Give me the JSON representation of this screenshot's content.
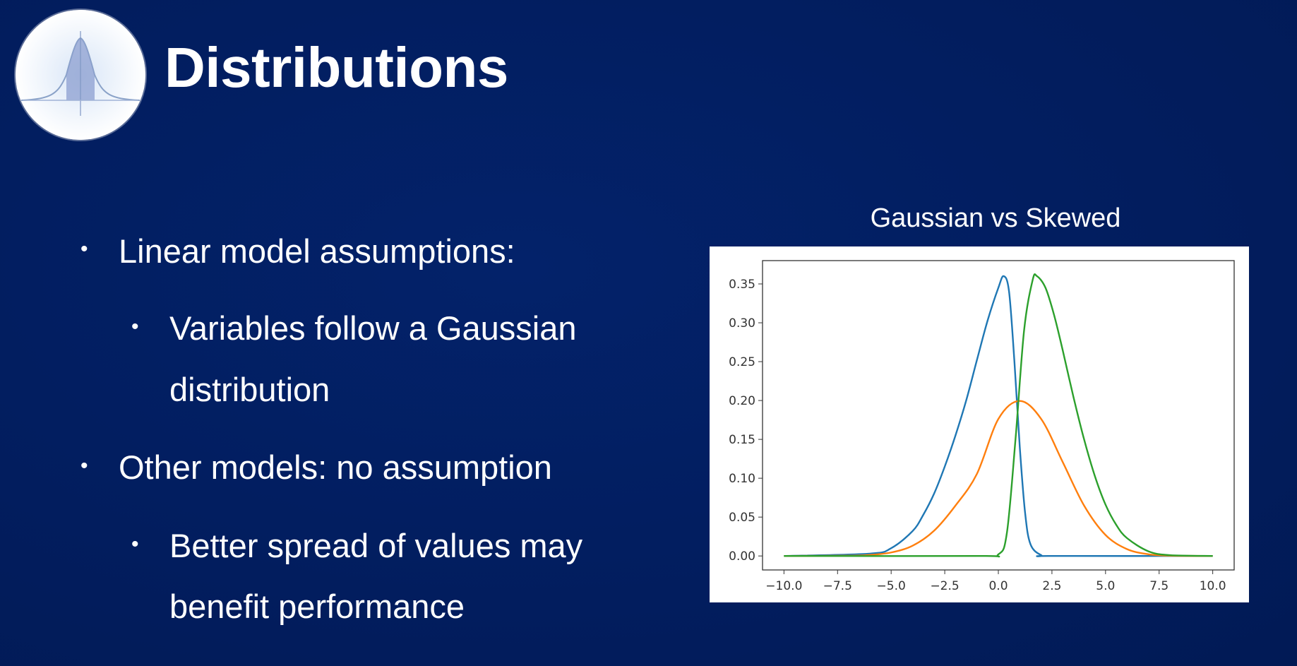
{
  "slide": {
    "title": "Distributions",
    "bullets": [
      {
        "text": "Linear model assumptions:",
        "level": 1
      },
      {
        "text": "Variables follow a Gaussian",
        "level": 2
      },
      {
        "text": "distribution",
        "level": 2,
        "continuation": true
      },
      {
        "text": "Other models: no assumption",
        "level": 1
      },
      {
        "text": "Better spread of values may",
        "level": 2
      },
      {
        "text": "benefit performance",
        "level": 2,
        "continuation": true
      }
    ],
    "bullet_symbol": "•",
    "colors": {
      "background": "#021d5e",
      "text": "#ffffff"
    }
  },
  "logo": {
    "icon": "bell-curve-icon"
  },
  "chart_data": {
    "type": "line",
    "title": "Gaussian vs Skewed",
    "xlabel": "",
    "ylabel": "",
    "xlim": [
      -11,
      11
    ],
    "ylim": [
      -0.018,
      0.38
    ],
    "xticks": [
      -10.0,
      -7.5,
      -5.0,
      -2.5,
      0.0,
      2.5,
      5.0,
      7.5,
      10.0
    ],
    "xtick_labels": [
      "−10.0",
      "−7.5",
      "−5.0",
      "−2.5",
      "0.0",
      "2.5",
      "5.0",
      "7.5",
      "10.0"
    ],
    "yticks": [
      0.0,
      0.05,
      0.1,
      0.15,
      0.2,
      0.25,
      0.3,
      0.35
    ],
    "ytick_labels": [
      "0.00",
      "0.05",
      "0.10",
      "0.15",
      "0.20",
      "0.25",
      "0.30",
      "0.35"
    ],
    "grid": false,
    "series": [
      {
        "color": "#1f77b4",
        "x": [
          -10.0,
          -6.0,
          -5.0,
          -4.0,
          -3.5,
          -3.0,
          -2.5,
          -2.0,
          -1.5,
          -1.0,
          -0.5,
          0.0,
          0.25,
          0.5,
          0.75,
          1.0,
          1.25,
          1.5,
          2.0,
          2.5,
          10.0
        ],
        "y": [
          0.0,
          0.003,
          0.01,
          0.032,
          0.053,
          0.08,
          0.115,
          0.155,
          0.2,
          0.252,
          0.303,
          0.345,
          0.36,
          0.34,
          0.25,
          0.14,
          0.055,
          0.015,
          0.001,
          0.0,
          0.0
        ]
      },
      {
        "color": "#ff7f0e",
        "x": [
          -10.0,
          -7.0,
          -6.0,
          -5.0,
          -4.0,
          -3.0,
          -2.0,
          -1.0,
          0.0,
          1.0,
          2.0,
          3.0,
          4.0,
          5.0,
          6.0,
          7.0,
          8.0,
          10.0
        ],
        "y": [
          0.0,
          0.0003,
          0.0013,
          0.0045,
          0.0132,
          0.0324,
          0.0648,
          0.1056,
          0.1762,
          0.1995,
          0.1762,
          0.121,
          0.0648,
          0.027,
          0.0088,
          0.0022,
          0.0004,
          0.0
        ],
        "note_formula": "normal mean 1 sd 2"
      },
      {
        "color": "#2ca02c",
        "x": [
          -10.0,
          -1.0,
          0.0,
          0.4,
          0.8,
          1.2,
          1.6,
          1.8,
          2.2,
          2.6,
          3.0,
          3.5,
          4.0,
          4.5,
          5.0,
          5.5,
          6.0,
          7.0,
          8.0,
          10.0
        ],
        "y": [
          0.0,
          0.0,
          0.002,
          0.03,
          0.15,
          0.29,
          0.355,
          0.36,
          0.345,
          0.31,
          0.265,
          0.205,
          0.15,
          0.103,
          0.066,
          0.04,
          0.023,
          0.006,
          0.001,
          0.0
        ]
      }
    ]
  }
}
